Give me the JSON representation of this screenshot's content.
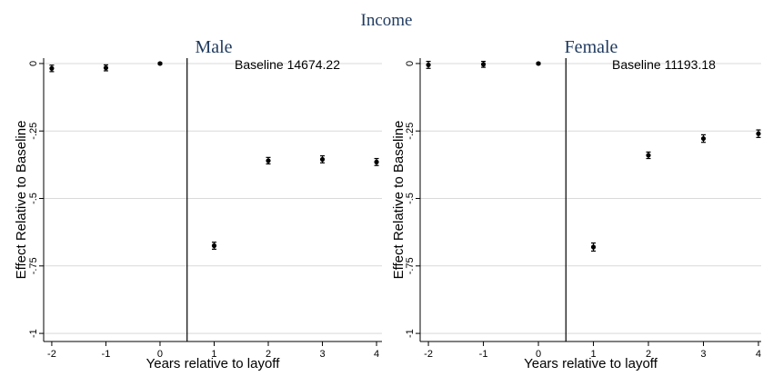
{
  "figure": {
    "title": "Income"
  },
  "chart_data": [
    {
      "type": "scatter",
      "title": "Male",
      "xlabel": "Years relative to layoff",
      "ylabel": "Effect Relative to Baseline",
      "annotation": "Baseline 14674.22",
      "x_ticks": [
        "-2",
        "-1",
        "0",
        "1",
        "2",
        "3",
        "4"
      ],
      "y_ticks": [
        "0",
        "-.25",
        "-.5",
        "-.75",
        "-1"
      ],
      "y_tick_values": [
        0,
        -0.25,
        -0.5,
        -0.75,
        -1
      ],
      "xlim": [
        -2.15,
        4.1
      ],
      "ylim": [
        -1.03,
        0.02
      ],
      "event_line_x": 0.5,
      "grid": "horizontal",
      "x": [
        -2,
        -1,
        0,
        1,
        2,
        3,
        4
      ],
      "y": [
        -0.018,
        -0.016,
        0.0,
        -0.675,
        -0.36,
        -0.355,
        -0.365
      ],
      "ci_low": [
        -0.03,
        -0.027,
        -0.003,
        -0.688,
        -0.372,
        -0.368,
        -0.378
      ],
      "ci_high": [
        -0.006,
        -0.005,
        0.003,
        -0.662,
        -0.348,
        -0.342,
        -0.352
      ]
    },
    {
      "type": "scatter",
      "title": "Female",
      "xlabel": "Years relative to layoff",
      "ylabel": "Effect Relative to Baseline",
      "annotation": "Baseline 11193.18",
      "x_ticks": [
        "-2",
        "-1",
        "0",
        "1",
        "2",
        "3",
        "4"
      ],
      "y_ticks": [
        "0",
        "-.25",
        "-.5",
        "-.75",
        "-1"
      ],
      "y_tick_values": [
        0,
        -0.25,
        -0.5,
        -0.75,
        -1
      ],
      "xlim": [
        -2.15,
        4.05
      ],
      "ylim": [
        -1.03,
        0.02
      ],
      "event_line_x": 0.5,
      "grid": "horizontal",
      "x": [
        -2,
        -1,
        0,
        1,
        2,
        3,
        4
      ],
      "y": [
        -0.005,
        -0.003,
        0.0,
        -0.68,
        -0.34,
        -0.278,
        -0.26
      ],
      "ci_low": [
        -0.018,
        -0.014,
        -0.003,
        -0.695,
        -0.352,
        -0.292,
        -0.274
      ],
      "ci_high": [
        0.008,
        0.008,
        0.003,
        -0.665,
        -0.328,
        -0.264,
        -0.246
      ]
    }
  ]
}
